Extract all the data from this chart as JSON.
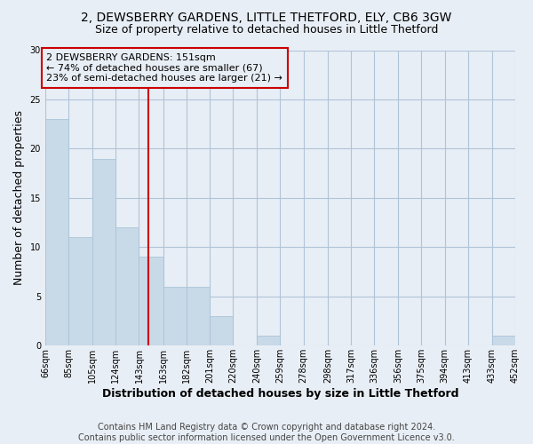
{
  "title": "2, DEWSBERRY GARDENS, LITTLE THETFORD, ELY, CB6 3GW",
  "subtitle": "Size of property relative to detached houses in Little Thetford",
  "xlabel": "Distribution of detached houses by size in Little Thetford",
  "ylabel": "Number of detached properties",
  "bin_edges": [
    66,
    85,
    105,
    124,
    143,
    163,
    182,
    201,
    220,
    240,
    259,
    278,
    298,
    317,
    336,
    356,
    375,
    394,
    413,
    433,
    452
  ],
  "counts": [
    23,
    11,
    19,
    12,
    9,
    6,
    6,
    3,
    0,
    1,
    0,
    0,
    0,
    0,
    0,
    0,
    0,
    0,
    0,
    1
  ],
  "bar_color": "#c8d9e8",
  "bar_edge_color": "#aac4d8",
  "vline_x": 151,
  "vline_color": "#cc0000",
  "annotation_text": "2 DEWSBERRY GARDENS: 151sqm\n← 74% of detached houses are smaller (67)\n23% of semi-detached houses are larger (21) →",
  "annotation_box_edge_color": "#cc0000",
  "ylim": [
    0,
    30
  ],
  "yticks": [
    0,
    5,
    10,
    15,
    20,
    25,
    30
  ],
  "tick_labels": [
    "66sqm",
    "85sqm",
    "105sqm",
    "124sqm",
    "143sqm",
    "163sqm",
    "182sqm",
    "201sqm",
    "220sqm",
    "240sqm",
    "259sqm",
    "278sqm",
    "298sqm",
    "317sqm",
    "336sqm",
    "356sqm",
    "375sqm",
    "394sqm",
    "413sqm",
    "433sqm",
    "452sqm"
  ],
  "footer_text": "Contains HM Land Registry data © Crown copyright and database right 2024.\nContains public sector information licensed under the Open Government Licence v3.0.",
  "background_color": "#e8eef5",
  "plot_bg_color": "#e8eef5",
  "grid_color": "#b0c4d8",
  "title_fontsize": 10,
  "subtitle_fontsize": 9,
  "label_fontsize": 9,
  "tick_fontsize": 7,
  "footer_fontsize": 7,
  "annotation_fontsize": 8
}
